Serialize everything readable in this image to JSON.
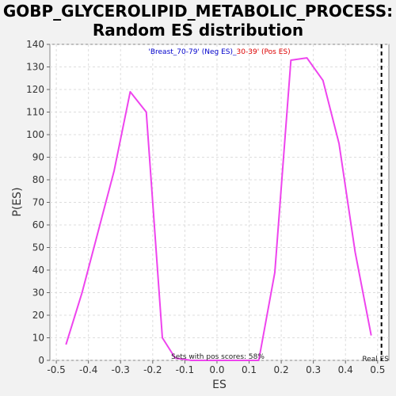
{
  "chart_data": {
    "type": "line",
    "title_line1": "GOBP_GLYCEROLIPID_METABOLIC_PROCESS:",
    "title_line2": "Random ES distribution",
    "xlabel": "ES",
    "ylabel": "P(ES)",
    "xlim": [
      -0.52,
      0.535
    ],
    "ylim": [
      0,
      140
    ],
    "x_ticks": [
      -0.5,
      -0.4,
      -0.3,
      -0.2,
      -0.1,
      0.0,
      0.1,
      0.2,
      0.3,
      0.4,
      0.5
    ],
    "x_tick_labels": [
      "-0.5",
      "-0.4",
      "-0.3",
      "-0.2",
      "-0.1",
      "0.0",
      "0.1",
      "0.2",
      "0.3",
      "0.4",
      "0.5"
    ],
    "y_ticks": [
      0,
      10,
      20,
      30,
      40,
      50,
      60,
      70,
      80,
      90,
      100,
      110,
      120,
      130,
      140
    ],
    "grid": true,
    "legend": {
      "neg_text": "'Breast_70-79' (Neg ES)",
      "sep": "_",
      "pos_text": "30-39' (Pos ES)",
      "neg_color": "#0000cc",
      "pos_color": "#dd0000"
    },
    "line_color": "#ee44ee",
    "series": [
      {
        "values": [
          [
            -0.47,
            7
          ],
          [
            -0.42,
            30
          ],
          [
            -0.32,
            84
          ],
          [
            -0.27,
            119
          ],
          [
            -0.22,
            110
          ],
          [
            -0.17,
            10
          ],
          [
            -0.13,
            1
          ],
          [
            -0.08,
            0
          ],
          [
            0.0,
            0
          ],
          [
            0.08,
            0
          ],
          [
            0.13,
            0
          ],
          [
            0.18,
            39
          ],
          [
            0.23,
            133
          ],
          [
            0.28,
            134
          ],
          [
            0.33,
            124
          ],
          [
            0.38,
            96
          ],
          [
            0.43,
            48
          ],
          [
            0.48,
            11
          ]
        ]
      }
    ],
    "real_es": 0.512,
    "real_es_label": "Real ES",
    "annotation": "Sets with pos scores: 58%"
  }
}
